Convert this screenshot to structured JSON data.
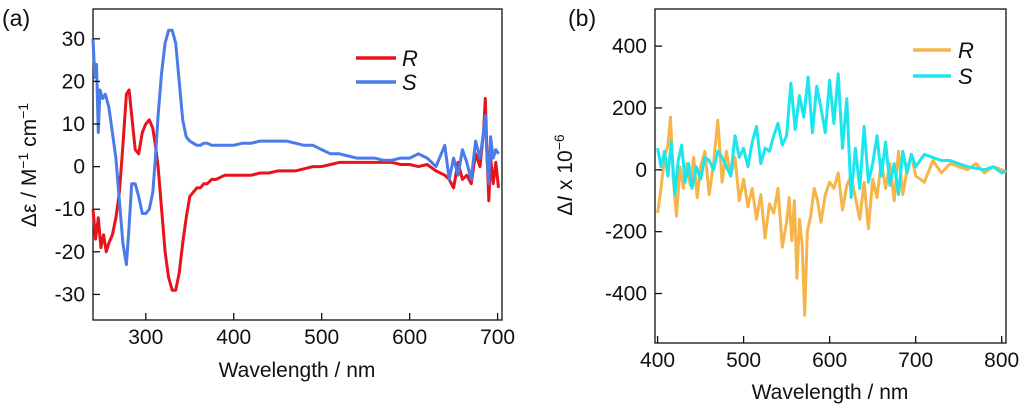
{
  "chart_data": [
    {
      "type": "line",
      "panel_label": "(a)",
      "xlabel": "Wavelength / nm",
      "ylabel_parts": [
        "Δε / M",
        "−1",
        " cm",
        "−1"
      ],
      "xlim": [
        240,
        705
      ],
      "ylim": [
        -36,
        37
      ],
      "xticks": [
        300,
        400,
        500,
        600,
        700
      ],
      "yticks": [
        -30,
        -20,
        -10,
        0,
        10,
        20,
        30
      ],
      "legend_position": "top-right",
      "series": [
        {
          "name": "R",
          "color": "#e8141b",
          "x": [
            240,
            243,
            246,
            249,
            252,
            255,
            258,
            262,
            266,
            270,
            274,
            278,
            281,
            284,
            288,
            292,
            296,
            300,
            304,
            308,
            311,
            314,
            318,
            322,
            326,
            330,
            334,
            338,
            342,
            346,
            350,
            354,
            358,
            362,
            366,
            370,
            375,
            380,
            390,
            400,
            410,
            420,
            430,
            440,
            450,
            460,
            470,
            480,
            490,
            500,
            510,
            520,
            530,
            540,
            550,
            560,
            570,
            580,
            590,
            600,
            610,
            620,
            630,
            640,
            645,
            650,
            655,
            660,
            665,
            670,
            675,
            680,
            684,
            686,
            688,
            690,
            692,
            695,
            698,
            701
          ],
          "values": [
            -10,
            -17,
            -12,
            -19,
            -16,
            -20,
            -18,
            -16,
            -12,
            -6,
            5,
            17,
            18,
            12,
            4,
            3,
            8,
            10,
            11,
            9,
            5,
            0,
            -10,
            -20,
            -26,
            -29,
            -29,
            -25,
            -18,
            -12,
            -7,
            -6,
            -5,
            -5,
            -4,
            -4,
            -3,
            -3,
            -2,
            -2,
            -2,
            -2,
            -1.5,
            -1.5,
            -1,
            -1,
            -1,
            -0.5,
            0,
            0,
            0.5,
            1,
            1,
            1,
            1,
            1,
            1,
            1,
            0.5,
            0.5,
            0,
            0.5,
            -1,
            -2,
            -3,
            -5,
            1,
            -3,
            -2,
            -4,
            3,
            0,
            8,
            16,
            3,
            -8,
            2,
            -4,
            1,
            -5
          ]
        },
        {
          "name": "S",
          "color": "#4a7be9",
          "x": [
            240,
            242,
            244,
            246,
            248,
            251,
            254,
            258,
            262,
            266,
            270,
            274,
            278,
            281,
            284,
            288,
            292,
            296,
            300,
            304,
            308,
            311,
            314,
            318,
            322,
            326,
            330,
            334,
            338,
            342,
            346,
            350,
            354,
            358,
            362,
            366,
            370,
            375,
            380,
            390,
            400,
            410,
            420,
            430,
            440,
            450,
            460,
            470,
            480,
            490,
            500,
            510,
            520,
            530,
            540,
            550,
            560,
            570,
            580,
            590,
            600,
            610,
            620,
            630,
            640,
            645,
            650,
            655,
            660,
            665,
            670,
            675,
            680,
            684,
            686,
            688,
            690,
            692,
            695,
            698,
            701
          ],
          "values": [
            30,
            21,
            24,
            8,
            18,
            16,
            17,
            14,
            8,
            2,
            -8,
            -18,
            -23,
            -14,
            -4,
            -4,
            -7,
            -11,
            -11,
            -10,
            -6,
            2,
            12,
            22,
            29,
            32,
            32,
            29,
            20,
            11,
            7,
            6,
            5.5,
            5,
            5,
            5.5,
            5.5,
            5,
            5,
            5,
            5,
            5.5,
            5.5,
            6,
            6,
            6,
            6,
            5.5,
            5,
            5,
            4,
            3,
            3,
            2.5,
            2,
            2,
            2,
            1.5,
            1.5,
            2,
            2,
            3,
            2,
            0,
            5,
            -3,
            2,
            -2,
            4,
            1,
            -3,
            6,
            2,
            8,
            12,
            2,
            -4,
            7,
            2,
            4,
            3
          ]
        }
      ]
    },
    {
      "type": "line",
      "panel_label": "(b)",
      "xlabel": "Wavelength / nm",
      "ylabel_parts": [
        "Δ",
        "I",
        " x 10",
        "−6"
      ],
      "xlim": [
        397,
        805
      ],
      "ylim": [
        -560,
        520
      ],
      "xticks": [
        400,
        500,
        600,
        700,
        800
      ],
      "yticks": [
        -400,
        -200,
        0,
        200,
        400
      ],
      "legend_position": "top-right",
      "series": [
        {
          "name": "R",
          "color": "#f7b44a",
          "x": [
            400,
            404,
            408,
            412,
            415,
            418,
            422,
            426,
            430,
            434,
            438,
            442,
            446,
            450,
            455,
            460,
            465,
            470,
            475,
            480,
            485,
            490,
            495,
            500,
            505,
            510,
            515,
            520,
            525,
            530,
            535,
            540,
            545,
            550,
            553,
            556,
            559,
            562,
            565,
            568,
            571,
            574,
            578,
            582,
            586,
            590,
            595,
            600,
            605,
            610,
            615,
            620,
            625,
            630,
            635,
            640,
            645,
            650,
            655,
            660,
            665,
            670,
            675,
            680,
            685,
            690,
            695,
            700,
            710,
            720,
            730,
            740,
            750,
            760,
            770,
            780,
            790,
            800,
            805
          ],
          "values": [
            -140,
            -60,
            40,
            80,
            170,
            -20,
            -150,
            10,
            -60,
            20,
            -50,
            40,
            -90,
            10,
            60,
            -80,
            20,
            160,
            -40,
            60,
            -20,
            40,
            -100,
            -30,
            -120,
            -60,
            -160,
            -80,
            -220,
            -110,
            -140,
            -60,
            -250,
            -170,
            -90,
            -230,
            -100,
            -350,
            -160,
            -240,
            -470,
            -200,
            -150,
            -60,
            -100,
            -170,
            -80,
            -40,
            -60,
            -10,
            -130,
            -50,
            -20,
            -90,
            -160,
            -40,
            -190,
            -30,
            -90,
            30,
            -60,
            20,
            -100,
            60,
            -80,
            0,
            50,
            -20,
            -40,
            30,
            -10,
            20,
            10,
            0,
            20,
            -10,
            10,
            0,
            -5
          ]
        },
        {
          "name": "S",
          "color": "#1be6ee",
          "x": [
            400,
            404,
            408,
            412,
            416,
            420,
            424,
            428,
            432,
            436,
            440,
            445,
            450,
            455,
            460,
            465,
            470,
            475,
            480,
            485,
            490,
            495,
            500,
            505,
            510,
            515,
            520,
            525,
            530,
            535,
            540,
            545,
            550,
            555,
            560,
            565,
            570,
            575,
            580,
            585,
            590,
            595,
            600,
            605,
            610,
            615,
            620,
            625,
            630,
            635,
            640,
            645,
            650,
            655,
            660,
            665,
            670,
            675,
            680,
            685,
            690,
            695,
            700,
            710,
            720,
            730,
            740,
            750,
            760,
            770,
            780,
            790,
            800,
            805
          ],
          "values": [
            70,
            10,
            60,
            -20,
            90,
            -80,
            30,
            80,
            -40,
            20,
            -60,
            10,
            -30,
            40,
            30,
            0,
            60,
            40,
            10,
            -20,
            110,
            40,
            70,
            10,
            90,
            140,
            20,
            70,
            60,
            110,
            150,
            80,
            110,
            280,
            130,
            240,
            170,
            300,
            120,
            270,
            200,
            120,
            290,
            150,
            310,
            70,
            230,
            -90,
            70,
            -60,
            140,
            -40,
            20,
            110,
            -20,
            90,
            -50,
            20,
            -80,
            60,
            -10,
            50,
            10,
            50,
            40,
            30,
            30,
            20,
            10,
            5,
            0,
            10,
            -10,
            -5
          ]
        }
      ]
    }
  ]
}
